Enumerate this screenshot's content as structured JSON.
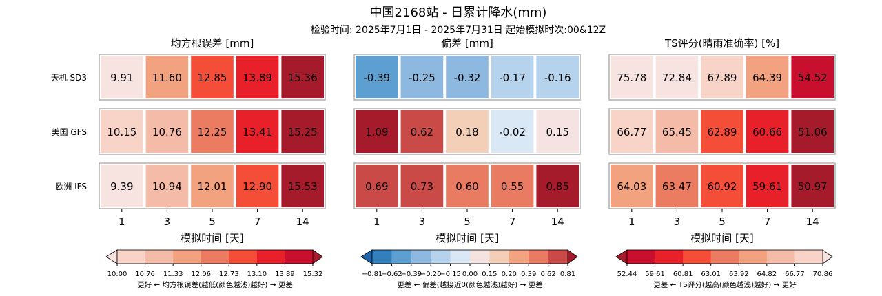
{
  "title": "中国2168站 - 日累计降水(mm)",
  "subtitle": "检验时间: 2025年7月1日 - 2025年7月31日 起始模拟时次:00&12Z",
  "chart_data": [
    {
      "type": "heatmap",
      "title": "均方根误差 [mm]",
      "xlabel": "模拟时间 [天]",
      "x": [
        "1",
        "3",
        "5",
        "7",
        "14"
      ],
      "rows": [
        "天机 SD3",
        "美国 GFS",
        "欧洲 IFS"
      ],
      "values": [
        [
          9.91,
          11.6,
          12.85,
          13.89,
          15.36
        ],
        [
          10.15,
          10.76,
          12.25,
          13.41,
          15.25
        ],
        [
          9.39,
          10.94,
          12.01,
          12.9,
          15.53
        ]
      ],
      "labels": [
        [
          "9.91",
          "11.60",
          "12.85",
          "13.89",
          "15.36"
        ],
        [
          "10.15",
          "10.76",
          "12.25",
          "13.41",
          "15.25"
        ],
        [
          "9.39",
          "10.94",
          "12.01",
          "12.90",
          "15.53"
        ]
      ],
      "colors": [
        [
          "#f7e4e0",
          "#f3a27f",
          "#f44d38",
          "#e8202a",
          "#a51b2b"
        ],
        [
          "#f8d3c8",
          "#f4bca8",
          "#ec7c61",
          "#e8202a",
          "#a51b2b"
        ],
        [
          "#f7e4e0",
          "#f4bca8",
          "#f3a27f",
          "#f44d38",
          "#a51b2b"
        ]
      ],
      "colorbar": {
        "ticks": [
          "10.00",
          "10.76",
          "11.33",
          "12.06",
          "12.73",
          "13.10",
          "13.89",
          "15.32"
        ],
        "colors": [
          "#f8d3c8",
          "#f4bca8",
          "#f3a27f",
          "#ec7c61",
          "#f44d38",
          "#e8202a",
          "#c8102e"
        ],
        "under": "#f7e4e0",
        "over": "#a51b2b",
        "caption": "更好 ← 均方根误差(越低(颜色越浅)越好) → 更差"
      }
    },
    {
      "type": "heatmap",
      "title": "偏差 [mm]",
      "xlabel": "模拟时间 [天]",
      "x": [
        "1",
        "3",
        "5",
        "7",
        "14"
      ],
      "rows": [
        "天机 SD3",
        "美国 GFS",
        "欧洲 IFS"
      ],
      "values": [
        [
          -0.39,
          -0.25,
          -0.32,
          -0.17,
          -0.16
        ],
        [
          1.09,
          0.62,
          0.18,
          -0.02,
          0.15
        ],
        [
          0.69,
          0.73,
          0.6,
          0.55,
          0.85
        ]
      ],
      "labels": [
        [
          "-0.39",
          "-0.25",
          "-0.32",
          "-0.17",
          "-0.16"
        ],
        [
          "1.09",
          "0.62",
          "0.18",
          "-0.02",
          "0.15"
        ],
        [
          "0.69",
          "0.73",
          "0.60",
          "0.55",
          "0.85"
        ]
      ],
      "colors": [
        [
          "#5d9fd0",
          "#8db9e0",
          "#8db9e0",
          "#b5d3ec",
          "#b5d3ec"
        ],
        [
          "#a51b2b",
          "#c94a46",
          "#f3cfb7",
          "#dae8f5",
          "#f5e3e1"
        ],
        [
          "#c94a46",
          "#c94a46",
          "#ea7b63",
          "#ea7b63",
          "#a51b2b"
        ]
      ],
      "colorbar": {
        "ticks": [
          "−0.81",
          "−0.62",
          "−0.39",
          "−0.20",
          "−0.15",
          "0.00",
          "0.15",
          "0.20",
          "0.39",
          "0.62",
          "0.81"
        ],
        "colors": [
          "#327fbc",
          "#5d9fd0",
          "#8db9e0",
          "#b5d3ec",
          "#dae8f5",
          "#f5e3e1",
          "#f3cfb7",
          "#f2a380",
          "#ea7b63",
          "#c94a46"
        ],
        "under": "#1f65a8",
        "over": "#a51b2b",
        "caption": "更差 ← 偏差(越接近0(颜色越浅)越好) → 更差"
      }
    },
    {
      "type": "heatmap",
      "title": "TS评分(晴雨准确率) [%]",
      "xlabel": "模拟时间 [天]",
      "x": [
        "1",
        "3",
        "5",
        "7",
        "14"
      ],
      "rows": [
        "天机 SD3",
        "美国 GFS",
        "欧洲 IFS"
      ],
      "values": [
        [
          75.78,
          72.84,
          67.89,
          64.39,
          54.52
        ],
        [
          66.77,
          65.45,
          62.89,
          60.66,
          51.06
        ],
        [
          64.03,
          63.47,
          60.92,
          59.61,
          50.97
        ]
      ],
      "labels": [
        [
          "75.78",
          "72.84",
          "67.89",
          "64.39",
          "54.52"
        ],
        [
          "66.77",
          "65.45",
          "62.89",
          "60.66",
          "51.06"
        ],
        [
          "64.03",
          "63.47",
          "60.92",
          "59.61",
          "50.97"
        ]
      ],
      "colors": [
        [
          "#f7e4e0",
          "#f7e4e0",
          "#f8d3c8",
          "#f3a27f",
          "#c8102e"
        ],
        [
          "#f8d3c8",
          "#f4bca8",
          "#f44d38",
          "#e8202a",
          "#a51b2b"
        ],
        [
          "#f3a27f",
          "#ec7c61",
          "#f44d38",
          "#e8202a",
          "#a51b2b"
        ]
      ],
      "colorbar": {
        "ticks": [
          "52.44",
          "59.61",
          "60.81",
          "63.01",
          "63.92",
          "64.82",
          "66.77",
          "70.86"
        ],
        "colors": [
          "#c8102e",
          "#e8202a",
          "#f44d38",
          "#ec7c61",
          "#f3a27f",
          "#f4bca8",
          "#f8d3c8"
        ],
        "under": "#a51b2b",
        "over": "#f7e4e0",
        "caption": "更差 ← TS评分(越高(颜色越浅)越好) → 更好"
      }
    }
  ]
}
